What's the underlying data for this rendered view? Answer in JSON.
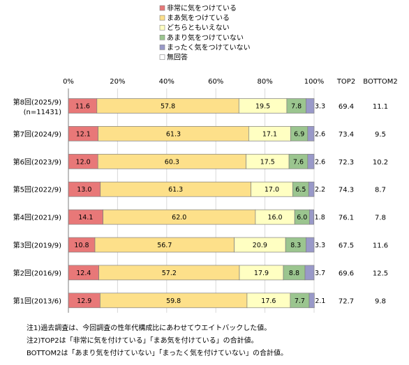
{
  "chart_data": {
    "type": "bar",
    "orientation": "horizontal",
    "stacked": true,
    "percent_stacked": true,
    "xlim": [
      0,
      100
    ],
    "x_ticks": [
      "0%",
      "20%",
      "40%",
      "60%",
      "80%",
      "100%"
    ],
    "grid": true,
    "legend_position": "top",
    "categories": [
      {
        "label": "第8回(2025/9)",
        "sub": "(n=11431)"
      },
      {
        "label": "第7回(2024/9)",
        "sub": ""
      },
      {
        "label": "第6回(2023/9)",
        "sub": ""
      },
      {
        "label": "第5回(2022/9)",
        "sub": ""
      },
      {
        "label": "第4回(2021/9)",
        "sub": ""
      },
      {
        "label": "第3回(2019/9)",
        "sub": ""
      },
      {
        "label": "第2回(2016/9)",
        "sub": ""
      },
      {
        "label": "第1回(2013/6)",
        "sub": ""
      }
    ],
    "series": [
      {
        "name": "非常に気をつけている",
        "color": "#e87878",
        "values": [
          11.6,
          12.1,
          12.0,
          13.0,
          14.1,
          10.8,
          12.4,
          12.9
        ],
        "labels": [
          "11.6",
          "12.1",
          "12.0",
          "13.0",
          "14.1",
          "10.8",
          "12.4",
          "12.9"
        ]
      },
      {
        "name": "まあ気をつけている",
        "color": "#fde08a",
        "values": [
          57.8,
          61.3,
          60.3,
          61.3,
          62.0,
          56.7,
          57.2,
          59.8
        ],
        "labels": [
          "57.8",
          "61.3",
          "60.3",
          "61.3",
          "62.0",
          "56.7",
          "57.2",
          "59.8"
        ]
      },
      {
        "name": "どちらともいえない",
        "color": "#ffffc2",
        "values": [
          19.5,
          17.1,
          17.5,
          17.0,
          16.0,
          20.9,
          17.9,
          17.6
        ],
        "labels": [
          "19.5",
          "17.1",
          "17.5",
          "17.0",
          "16.0",
          "20.9",
          "17.9",
          "17.6"
        ]
      },
      {
        "name": "あまり気をつけていない",
        "color": "#9bc58f",
        "values": [
          7.8,
          6.9,
          7.6,
          6.5,
          6.0,
          8.3,
          8.8,
          7.7
        ],
        "labels": [
          "7.8",
          "6.9",
          "7.6",
          "6.5",
          "6.0",
          "8.3",
          "8.8",
          "7.7"
        ]
      },
      {
        "name": "まったく気をつけていない",
        "color": "#9999c9",
        "values": [
          3.3,
          2.6,
          2.6,
          2.2,
          1.8,
          3.3,
          3.7,
          2.1
        ],
        "labels": [
          "3.3",
          "2.6",
          "2.6",
          "2.2",
          "1.8",
          "3.3",
          "3.7",
          "2.1"
        ]
      },
      {
        "name": "無回答",
        "color": "#ffffff",
        "values": [
          0,
          0,
          0,
          0,
          0,
          0,
          0,
          0
        ],
        "labels": [
          "",
          "",
          "",
          "",
          "",
          "",
          "",
          ""
        ]
      }
    ],
    "extra_columns": [
      {
        "header": "TOP2",
        "values": [
          "69.4",
          "73.4",
          "72.3",
          "74.3",
          "76.1",
          "67.5",
          "69.6",
          "72.7"
        ]
      },
      {
        "header": "BOTTOM2",
        "values": [
          "11.1",
          "9.5",
          "10.2",
          "8.7",
          "7.8",
          "11.6",
          "12.5",
          "9.8"
        ]
      }
    ],
    "axis_line_color": "#7f7f7f"
  },
  "notes": [
    "注1)過去調査は、今回調査の性年代構成比にあわせてウエイトバックした値。",
    "注2)TOP2は「非常に気を付けている」「まあ気を付けている」の合計値。",
    "BOTTOM2は「あまり気を付けていない」「まったく気を付けていない」の合計値。"
  ]
}
